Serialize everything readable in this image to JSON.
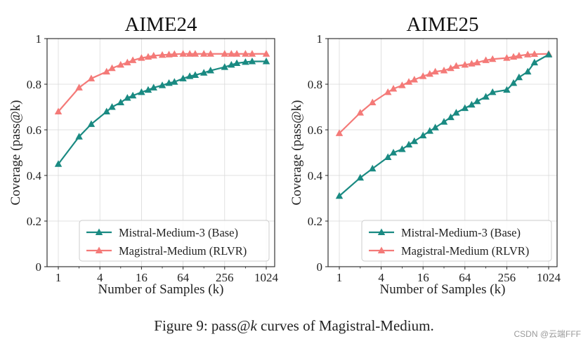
{
  "chart_data": [
    {
      "type": "line",
      "title": "AIME24",
      "xlabel": "Number of Samples (k)",
      "ylabel": "Coverage (pass@k)",
      "xscale": "log2",
      "xticks": [
        1,
        4,
        16,
        64,
        256,
        1024
      ],
      "xtick_labels": [
        "1",
        "4",
        "16",
        "64",
        "256",
        "1024"
      ],
      "ylim": [
        0,
        1
      ],
      "yticks": [
        0,
        0.2,
        0.4,
        0.6,
        0.8,
        1
      ],
      "ytick_labels": [
        "0",
        "0.2",
        "0.4",
        "0.6",
        "0.8",
        "1"
      ],
      "grid": true,
      "legend_position": "bottom-right",
      "x": [
        1,
        2,
        3,
        5,
        6,
        8,
        10,
        12,
        16,
        20,
        24,
        32,
        40,
        48,
        64,
        80,
        96,
        128,
        160,
        256,
        320,
        384,
        512,
        640,
        1024
      ],
      "series": [
        {
          "name": "Mistral-Medium-3 (Base)",
          "color": "#1a8a82",
          "marker": "triangle",
          "values": [
            0.45,
            0.57,
            0.625,
            0.68,
            0.7,
            0.72,
            0.74,
            0.75,
            0.765,
            0.775,
            0.785,
            0.795,
            0.805,
            0.81,
            0.825,
            0.835,
            0.84,
            0.85,
            0.86,
            0.875,
            0.885,
            0.892,
            0.897,
            0.9,
            0.9
          ]
        },
        {
          "name": "Magistral-Medium (RLVR)",
          "color": "#f47a78",
          "marker": "triangle",
          "values": [
            0.68,
            0.785,
            0.825,
            0.855,
            0.87,
            0.885,
            0.895,
            0.905,
            0.915,
            0.92,
            0.925,
            0.928,
            0.93,
            0.932,
            0.933,
            0.933,
            0.933,
            0.933,
            0.933,
            0.933,
            0.933,
            0.933,
            0.933,
            0.933,
            0.933
          ]
        }
      ]
    },
    {
      "type": "line",
      "title": "AIME25",
      "xlabel": "Number of Samples (k)",
      "ylabel": "Coverage (pass@k)",
      "xscale": "log2",
      "xticks": [
        1,
        4,
        16,
        64,
        256,
        1024
      ],
      "xtick_labels": [
        "1",
        "4",
        "16",
        "64",
        "256",
        "1024"
      ],
      "ylim": [
        0,
        1
      ],
      "yticks": [
        0,
        0.2,
        0.4,
        0.6,
        0.8,
        1
      ],
      "ytick_labels": [
        "0",
        "0.2",
        "0.4",
        "0.6",
        "0.8",
        "1"
      ],
      "grid": true,
      "legend_position": "bottom-right",
      "x": [
        1,
        2,
        3,
        5,
        6,
        8,
        10,
        12,
        16,
        20,
        24,
        32,
        40,
        48,
        64,
        80,
        96,
        128,
        160,
        256,
        320,
        384,
        512,
        640,
        1024
      ],
      "series": [
        {
          "name": "Mistral-Medium-3 (Base)",
          "color": "#1a8a82",
          "marker": "triangle",
          "values": [
            0.31,
            0.39,
            0.43,
            0.48,
            0.5,
            0.515,
            0.535,
            0.55,
            0.575,
            0.595,
            0.61,
            0.635,
            0.655,
            0.675,
            0.695,
            0.71,
            0.725,
            0.745,
            0.765,
            0.775,
            0.805,
            0.83,
            0.855,
            0.895,
            0.93
          ]
        },
        {
          "name": "Magistral-Medium (RLVR)",
          "color": "#f47a78",
          "marker": "triangle",
          "values": [
            0.585,
            0.675,
            0.72,
            0.765,
            0.78,
            0.795,
            0.81,
            0.82,
            0.835,
            0.845,
            0.855,
            0.86,
            0.87,
            0.88,
            0.885,
            0.89,
            0.895,
            0.905,
            0.91,
            0.915,
            0.92,
            0.925,
            0.93,
            0.932,
            0.933
          ]
        }
      ]
    }
  ],
  "caption": {
    "prefix": "Figure 9: pass@",
    "var": "k",
    "suffix": " curves of Magistral-Medium."
  },
  "watermark": "CSDN @云端FFF"
}
